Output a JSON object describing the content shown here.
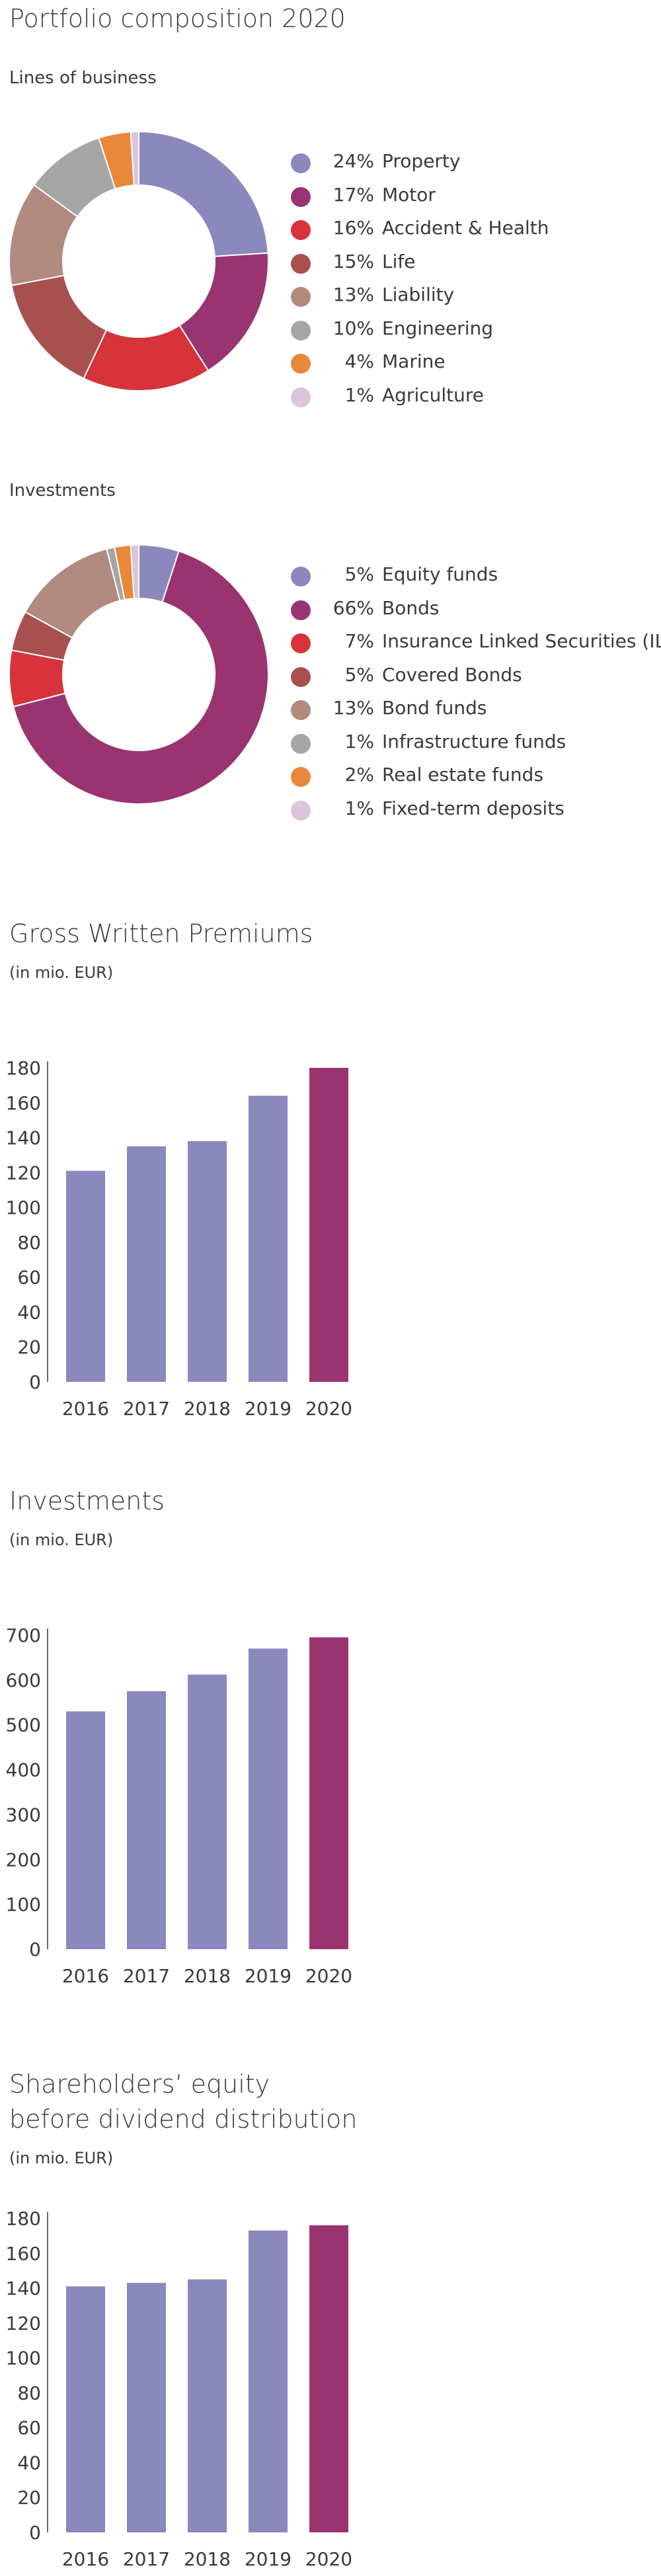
{
  "page": {
    "title": "Portfolio composition 2020"
  },
  "chart_data": [
    {
      "type": "pie",
      "title": "Lines of business",
      "slices": [
        {
          "label": "Property",
          "value": 24,
          "pct_label": "24%",
          "color": "#8A88BC"
        },
        {
          "label": "Motor",
          "value": 17,
          "pct_label": "17%",
          "color": "#9A3470"
        },
        {
          "label": "Accident & Health",
          "value": 16,
          "pct_label": "16%",
          "color": "#D6333A"
        },
        {
          "label": "Life",
          "value": 15,
          "pct_label": "15%",
          "color": "#A84F50"
        },
        {
          "label": "Liability",
          "value": 13,
          "pct_label": "13%",
          "color": "#B18A80"
        },
        {
          "label": "Engineering",
          "value": 10,
          "pct_label": "10%",
          "color": "#A6A6A6"
        },
        {
          "label": "Marine",
          "value": 4,
          "pct_label": "4%",
          "color": "#E8883A"
        },
        {
          "label": "Agriculture",
          "value": 1,
          "pct_label": "1%",
          "color": "#DCC4DA"
        }
      ]
    },
    {
      "type": "pie",
      "title": "Investments",
      "slices": [
        {
          "label": "Equity funds",
          "value": 5,
          "pct_label": "5%",
          "color": "#8A88BC"
        },
        {
          "label": "Bonds",
          "value": 66,
          "pct_label": "66%",
          "color": "#9A3470"
        },
        {
          "label": "Insurance Linked Securities (ILS)",
          "value": 7,
          "pct_label": "7%",
          "color": "#D6333A"
        },
        {
          "label": "Covered Bonds",
          "value": 5,
          "pct_label": "5%",
          "color": "#A84F50"
        },
        {
          "label": "Bond funds",
          "value": 13,
          "pct_label": "13%",
          "color": "#B18A80"
        },
        {
          "label": "Infrastructure funds",
          "value": 1,
          "pct_label": "1%",
          "color": "#A6A6A6"
        },
        {
          "label": "Real estate funds",
          "value": 2,
          "pct_label": "2%",
          "color": "#E8883A"
        },
        {
          "label": "Fixed-term deposits",
          "value": 1,
          "pct_label": "1%",
          "color": "#DCC4DA"
        }
      ]
    },
    {
      "type": "bar",
      "title": "Gross Written Premiums",
      "unit": "(in mio. EUR)",
      "categories": [
        "2016",
        "2017",
        "2018",
        "2019",
        "2020"
      ],
      "values": [
        121,
        135,
        138,
        164,
        180
      ],
      "yticks": [
        0,
        20,
        40,
        60,
        80,
        100,
        120,
        140,
        160,
        180
      ],
      "ylim": [
        0,
        180
      ],
      "colors": [
        "#8A88BC",
        "#8A88BC",
        "#8A88BC",
        "#8A88BC",
        "#9A3470"
      ]
    },
    {
      "type": "bar",
      "title": "Investments",
      "unit": "(in mio. EUR)",
      "categories": [
        "2016",
        "2017",
        "2018",
        "2019",
        "2020"
      ],
      "values": [
        530,
        575,
        612,
        670,
        695
      ],
      "yticks": [
        0,
        100,
        200,
        300,
        400,
        500,
        600,
        700
      ],
      "ylim": [
        0,
        700
      ],
      "colors": [
        "#8A88BC",
        "#8A88BC",
        "#8A88BC",
        "#8A88BC",
        "#9A3470"
      ]
    },
    {
      "type": "bar",
      "title": "Shareholders’ equity",
      "title_line2": "before dividend distribution",
      "unit": "(in mio. EUR)",
      "categories": [
        "2016",
        "2017",
        "2018",
        "2019",
        "2020"
      ],
      "values": [
        141,
        143,
        145,
        173,
        176
      ],
      "yticks": [
        0,
        20,
        40,
        60,
        80,
        100,
        120,
        140,
        160,
        180
      ],
      "ylim": [
        0,
        180
      ],
      "colors": [
        "#8A88BC",
        "#8A88BC",
        "#8A88BC",
        "#8A88BC",
        "#9A3470"
      ]
    }
  ]
}
